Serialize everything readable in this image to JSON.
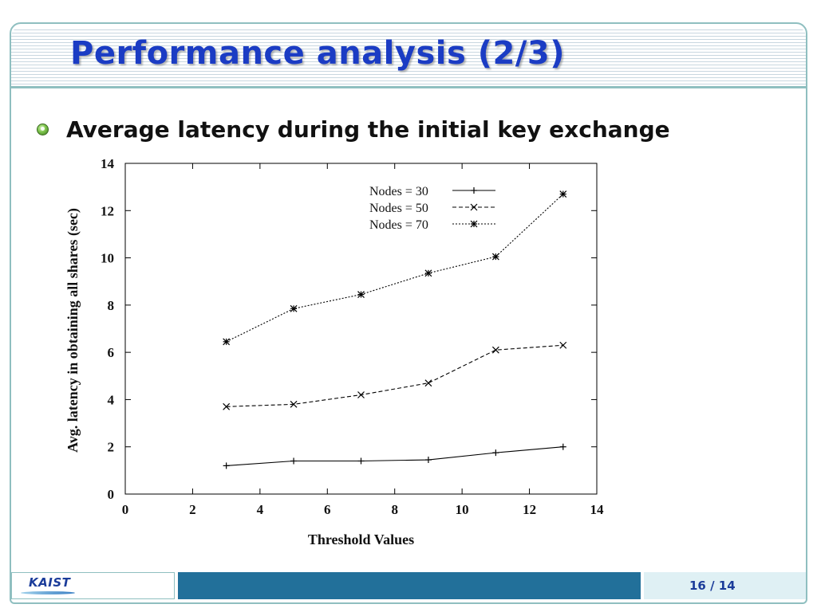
{
  "slide": {
    "title": "Performance analysis (2/3)",
    "bullet": "Average latency during the initial key exchange",
    "footer": {
      "logo_text": "KAIST",
      "page": "16 / 14"
    },
    "colors": {
      "title": "#1b3cc4",
      "footer_bar": "#22709a",
      "frame": "#8fbfc0"
    }
  },
  "chart_data": {
    "type": "line",
    "title": "",
    "xlabel": "Threshold Values",
    "ylabel": "Avg. latency in obtaining all shares (sec)",
    "xlim": [
      0,
      14
    ],
    "ylim": [
      0,
      14
    ],
    "xticks": [
      0,
      2,
      4,
      6,
      8,
      10,
      12,
      14
    ],
    "yticks": [
      0,
      2,
      4,
      6,
      8,
      10,
      12,
      14
    ],
    "grid": false,
    "legend_position": "top-right",
    "x": [
      3,
      5,
      7,
      9,
      11,
      13
    ],
    "series": [
      {
        "name": "Nodes = 30",
        "values": [
          1.2,
          1.4,
          1.4,
          1.45,
          1.75,
          2.0
        ],
        "line": "solid",
        "marker": "plus"
      },
      {
        "name": "Nodes = 50",
        "values": [
          3.7,
          3.8,
          4.2,
          4.7,
          6.1,
          6.3
        ],
        "line": "dashed",
        "marker": "cross"
      },
      {
        "name": "Nodes = 70",
        "values": [
          6.45,
          7.85,
          8.45,
          9.35,
          10.05,
          12.7
        ],
        "line": "dotted",
        "marker": "star"
      }
    ]
  }
}
